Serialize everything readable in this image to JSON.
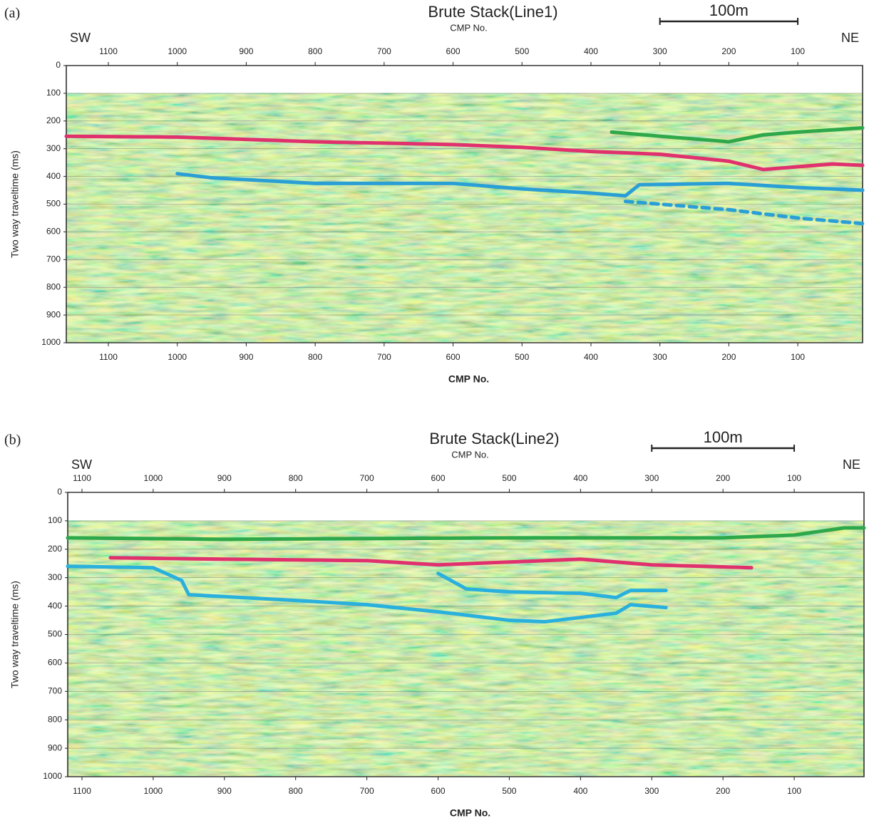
{
  "chart_data": [
    {
      "type": "line",
      "panel": "(a)",
      "title": "Brute Stack(Line1)",
      "top_axis_label": "CMP No.",
      "x_axis_label": "CMP No.",
      "y_axis_label": "Two way traveltime (ms)",
      "left_label": "SW",
      "right_label": "NE",
      "scale_bar": {
        "label": "100m",
        "x": [
          300,
          100
        ]
      },
      "xlim": [
        1161,
        6
      ],
      "xticks": [
        1100,
        1000,
        900,
        800,
        700,
        600,
        500,
        400,
        300,
        200,
        100
      ],
      "ylim": [
        1000,
        0
      ],
      "yticks": [
        0,
        100,
        200,
        300,
        400,
        500,
        600,
        700,
        800,
        900,
        1000
      ],
      "grid": true,
      "series": [
        {
          "color": "#e0306e",
          "x": [
            1161,
            1000,
            800,
            600,
            500,
            400,
            300,
            200,
            150,
            100,
            50,
            6
          ],
          "values": [
            255,
            258,
            275,
            285,
            295,
            310,
            320,
            345,
            375,
            365,
            355,
            360
          ]
        },
        {
          "color": "#2a9fd6",
          "x": [
            1000,
            950,
            800,
            700,
            600,
            500,
            400,
            350,
            330,
            200,
            100,
            6
          ],
          "values": [
            390,
            405,
            425,
            425,
            425,
            445,
            460,
            470,
            430,
            425,
            440,
            450
          ]
        },
        {
          "color": "#2a9fd6",
          "style": "dashed",
          "x": [
            350,
            200,
            100,
            6
          ],
          "values": [
            490,
            520,
            550,
            570
          ]
        },
        {
          "color": "#2ea84a",
          "x": [
            370,
            300,
            200,
            150,
            100,
            6
          ],
          "values": [
            240,
            255,
            275,
            250,
            240,
            225
          ]
        }
      ]
    },
    {
      "type": "line",
      "panel": "(b)",
      "title": "Brute Stack(Line2)",
      "top_axis_label": "CMP No.",
      "x_axis_label": "CMP No.",
      "y_axis_label": "Two way traveltime (ms)",
      "left_label": "SW",
      "right_label": "NE",
      "scale_bar": {
        "label": "100m",
        "x": [
          300,
          100
        ]
      },
      "xlim": [
        1120,
        2
      ],
      "xticks": [
        1100,
        1000,
        900,
        800,
        700,
        600,
        500,
        400,
        300,
        200,
        100
      ],
      "ylim": [
        1000,
        0
      ],
      "yticks": [
        0,
        100,
        200,
        300,
        400,
        500,
        600,
        700,
        800,
        900,
        1000
      ],
      "grid": true,
      "series": [
        {
          "color": "#2ea84a",
          "x": [
            1120,
            900,
            500,
            200,
            100,
            30,
            2
          ],
          "values": [
            160,
            165,
            160,
            160,
            150,
            125,
            125
          ]
        },
        {
          "color": "#e0306e",
          "x": [
            1060,
            900,
            700,
            600,
            500,
            400,
            300,
            160
          ],
          "values": [
            230,
            235,
            240,
            255,
            245,
            235,
            255,
            265
          ]
        },
        {
          "color": "#2ab0dd",
          "x": [
            1120,
            1000,
            960,
            950,
            800,
            700,
            600,
            500,
            450,
            400,
            350,
            330,
            280
          ],
          "values": [
            260,
            265,
            310,
            360,
            380,
            395,
            420,
            450,
            455,
            440,
            425,
            395,
            405
          ]
        },
        {
          "color": "#2ab0dd",
          "x": [
            600,
            560,
            500,
            400,
            350,
            330,
            280
          ],
          "values": [
            285,
            340,
            350,
            355,
            370,
            345,
            345
          ]
        }
      ]
    }
  ]
}
